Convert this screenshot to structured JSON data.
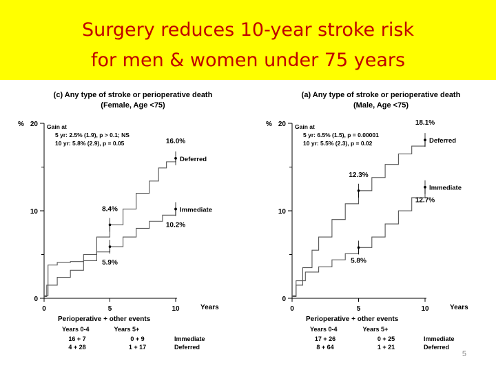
{
  "title": {
    "line1": "Surgery reduces 10-year stroke risk",
    "line2": "for men & women under 75 years"
  },
  "page_number": "5",
  "colors": {
    "title_band": "#ffff00",
    "title_text": "#c00000",
    "plot_line": "#555555"
  },
  "chart_data": [
    {
      "type": "line",
      "title": "(c) Any type of stroke or perioperative death",
      "subtitle": "(Female, Age <75)",
      "ylabel": "%",
      "xlabel": "Years",
      "xlim": [
        0,
        10
      ],
      "ylim": [
        0,
        20
      ],
      "x_ticks": [
        "0",
        "5",
        "10"
      ],
      "y_ticks": [
        "0",
        "10",
        "20"
      ],
      "gain": {
        "heading": "Gain at",
        "line1": "5 yr: 2.5% (1.9), p > 0.1; NS",
        "line2": "10 yr: 5.8% (2.9), p = 0.05"
      },
      "series": [
        {
          "name": "Deferred",
          "x": [
            0,
            0.3,
            1,
            2,
            3,
            4,
            5,
            6,
            7,
            8,
            8.7,
            9.3,
            10
          ],
          "y": [
            0.3,
            3.8,
            4.1,
            4.2,
            5.0,
            7.0,
            8.4,
            10.2,
            12.0,
            13.4,
            14.9,
            15.6,
            16.0
          ]
        },
        {
          "name": "Immediate",
          "x": [
            0,
            0.2,
            1,
            2,
            3,
            4,
            5,
            6,
            7,
            8,
            9,
            10
          ],
          "y": [
            0.2,
            1.5,
            2.4,
            3.2,
            4.3,
            5.3,
            5.9,
            7.0,
            8.0,
            8.8,
            9.5,
            10.2
          ]
        }
      ],
      "point_labels": [
        {
          "text": "16.0%",
          "x": 10,
          "y": 16.0
        },
        {
          "text": "8.4%",
          "x": 5,
          "y": 8.4
        },
        {
          "text": "10.2%",
          "x": 10,
          "y": 10.2
        },
        {
          "text": "5.9%",
          "x": 5,
          "y": 5.9
        }
      ],
      "events_table": {
        "heading": "Perioperative + other events",
        "col1": "Years 0-4",
        "col2": "Years 5+",
        "rows": [
          {
            "c1": "16 + 7",
            "c2": "0 + 9",
            "label": "Immediate"
          },
          {
            "c1": "4 + 28",
            "c2": "1 + 17",
            "label": "Deferred"
          }
        ]
      }
    },
    {
      "type": "line",
      "title": "(a) Any type of stroke or perioperative death",
      "subtitle": "(Male, Age <75)",
      "ylabel": "%",
      "xlabel": "Years",
      "xlim": [
        0,
        10
      ],
      "ylim": [
        0,
        20
      ],
      "x_ticks": [
        "0",
        "5",
        "10"
      ],
      "y_ticks": [
        "0",
        "10",
        "20"
      ],
      "gain": {
        "heading": "Gain at",
        "line1": "5 yr: 6.5% (1.5), p = 0.00001",
        "line2": "10 yr: 5.5% (2.3), p = 0.02"
      },
      "series": [
        {
          "name": "Deferred",
          "x": [
            0,
            0.3,
            0.8,
            1.5,
            2,
            3,
            4,
            5,
            6,
            7,
            8,
            9,
            10
          ],
          "y": [
            0.2,
            1.5,
            3.5,
            5.5,
            7.0,
            9.0,
            10.8,
            12.3,
            13.8,
            15.3,
            16.5,
            17.4,
            18.1
          ]
        },
        {
          "name": "Immediate",
          "x": [
            0,
            0.3,
            1,
            2,
            3,
            4,
            5,
            6,
            7,
            8,
            9,
            10
          ],
          "y": [
            0.3,
            2.0,
            3.0,
            3.6,
            4.4,
            5.1,
            5.8,
            7.0,
            8.5,
            10.0,
            11.5,
            12.7
          ]
        }
      ],
      "point_labels": [
        {
          "text": "18.1%",
          "x": 10,
          "y": 18.1
        },
        {
          "text": "12.3%",
          "x": 5,
          "y": 12.3
        },
        {
          "text": "12.7%",
          "x": 10,
          "y": 12.7
        },
        {
          "text": "5.8%",
          "x": 5,
          "y": 5.8
        }
      ],
      "events_table": {
        "heading": "Perioperative + other events",
        "col1": "Years 0-4",
        "col2": "Years 5+",
        "rows": [
          {
            "c1": "17 + 26",
            "c2": "0 + 25",
            "label": "Immediate"
          },
          {
            "c1": "8 + 64",
            "c2": "1 + 21",
            "label": "Deferred"
          }
        ]
      }
    }
  ]
}
